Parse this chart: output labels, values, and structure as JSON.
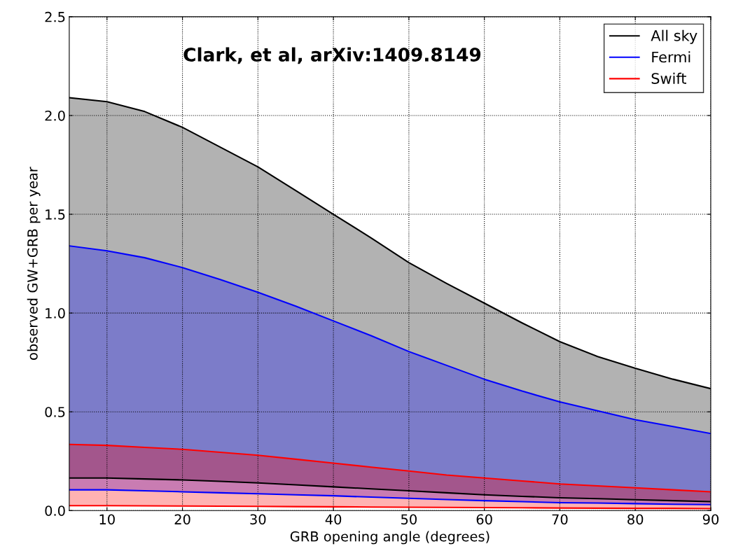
{
  "chart_data": {
    "type": "area",
    "xlabel": "GRB opening angle (degrees)",
    "ylabel": "observed GW+GRB per year",
    "annotations": [
      "Clark, et al, arXiv:1409.8149"
    ],
    "x": [
      5,
      10,
      15,
      20,
      25,
      30,
      35,
      40,
      45,
      50,
      55,
      60,
      65,
      70,
      75,
      80,
      85,
      90
    ],
    "series": [
      {
        "name": "All sky",
        "color": "#000000",
        "values": [
          2.09,
          2.07,
          2.02,
          1.94,
          1.84,
          1.74,
          1.62,
          1.5,
          1.38,
          1.255,
          1.15,
          1.05,
          0.95,
          0.855,
          0.78,
          0.72,
          0.665,
          0.617
        ]
      },
      {
        "name": "Fermi",
        "color": "#0000ff",
        "values": [
          1.34,
          1.315,
          1.28,
          1.23,
          1.17,
          1.105,
          1.035,
          0.96,
          0.885,
          0.805,
          0.735,
          0.665,
          0.605,
          0.55,
          0.505,
          0.46,
          0.425,
          0.39
        ]
      },
      {
        "name": "Swift",
        "color": "#ff0000",
        "values": [
          0.335,
          0.33,
          0.32,
          0.31,
          0.295,
          0.28,
          0.26,
          0.24,
          0.22,
          0.2,
          0.18,
          0.165,
          0.15,
          0.135,
          0.125,
          0.115,
          0.105,
          0.095
        ]
      },
      {
        "type": "line",
        "color": "#000000",
        "values": [
          0.165,
          0.165,
          0.16,
          0.155,
          0.148,
          0.14,
          0.13,
          0.12,
          0.11,
          0.1,
          0.09,
          0.08,
          0.072,
          0.065,
          0.06,
          0.055,
          0.05,
          0.045
        ]
      },
      {
        "type": "line",
        "color": "#0000ff",
        "values": [
          0.105,
          0.105,
          0.1,
          0.095,
          0.09,
          0.085,
          0.08,
          0.075,
          0.068,
          0.062,
          0.056,
          0.05,
          0.045,
          0.04,
          0.038,
          0.035,
          0.032,
          0.03
        ]
      },
      {
        "type": "line",
        "color": "#ff0000",
        "values": [
          0.025,
          0.025,
          0.024,
          0.023,
          0.022,
          0.021,
          0.02,
          0.019,
          0.018,
          0.017,
          0.016,
          0.015,
          0.014,
          0.013,
          0.012,
          0.011,
          0.011,
          0.01
        ]
      }
    ],
    "xlim": [
      5,
      90
    ],
    "xticks": [
      10,
      20,
      30,
      40,
      50,
      60,
      70,
      80,
      90
    ],
    "ylim": [
      0,
      2.5
    ],
    "yticks": [
      {
        "value": 0,
        "label": "0.0"
      },
      {
        "value": 0.5,
        "label": "0.5"
      },
      {
        "value": 1,
        "label": "1.0"
      },
      {
        "value": 1.5,
        "label": "1.5"
      },
      {
        "value": 2,
        "label": "2.0"
      },
      {
        "value": 2.5,
        "label": "2.5"
      }
    ],
    "grid": true,
    "legend": "top right"
  }
}
